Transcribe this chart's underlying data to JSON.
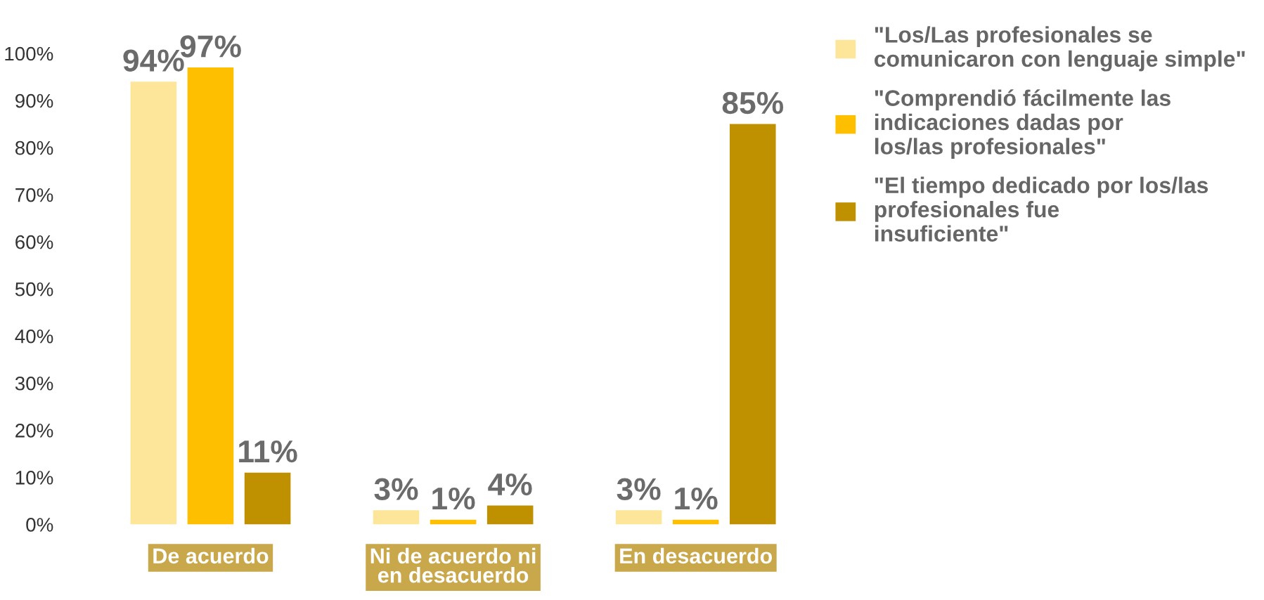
{
  "chart_data": {
    "type": "bar",
    "categories": [
      "De acuerdo",
      "Ni de acuerdo ni\nen desacuerdo",
      "En desacuerdo"
    ],
    "series": [
      {
        "name": "\"Los/Las profesionales se\ncomunicaron con lenguaje simple\"",
        "color": "#fde59a",
        "values": [
          94,
          3,
          3
        ],
        "value_labels": [
          "94%",
          "3%",
          "3%"
        ]
      },
      {
        "name": "\"Comprendió fácilmente las\nindicaciones dadas por\nlos/las profesionales\"",
        "color": "#fdbf00",
        "values": [
          97,
          1,
          1
        ],
        "value_labels": [
          "97%",
          "1%",
          "1%"
        ]
      },
      {
        "name": "\"El tiempo dedicado por los/las\nprofesionales fue\ninsuficiente\"",
        "color": "#bf9000",
        "values": [
          11,
          4,
          85
        ],
        "value_labels": [
          "11%",
          "4%",
          "85%"
        ]
      }
    ],
    "ylim": [
      0,
      100
    ],
    "yticks": [
      {
        "value": 0,
        "label": "0%"
      },
      {
        "value": 10,
        "label": "10%"
      },
      {
        "value": 20,
        "label": "20%"
      },
      {
        "value": 30,
        "label": "30%"
      },
      {
        "value": 40,
        "label": "40%"
      },
      {
        "value": 50,
        "label": "50%"
      },
      {
        "value": 60,
        "label": "60%"
      },
      {
        "value": 70,
        "label": "70%"
      },
      {
        "value": 80,
        "label": "80%"
      },
      {
        "value": 90,
        "label": "90%"
      },
      {
        "value": 100,
        "label": "100%"
      }
    ],
    "grid": false,
    "legend": "right"
  }
}
